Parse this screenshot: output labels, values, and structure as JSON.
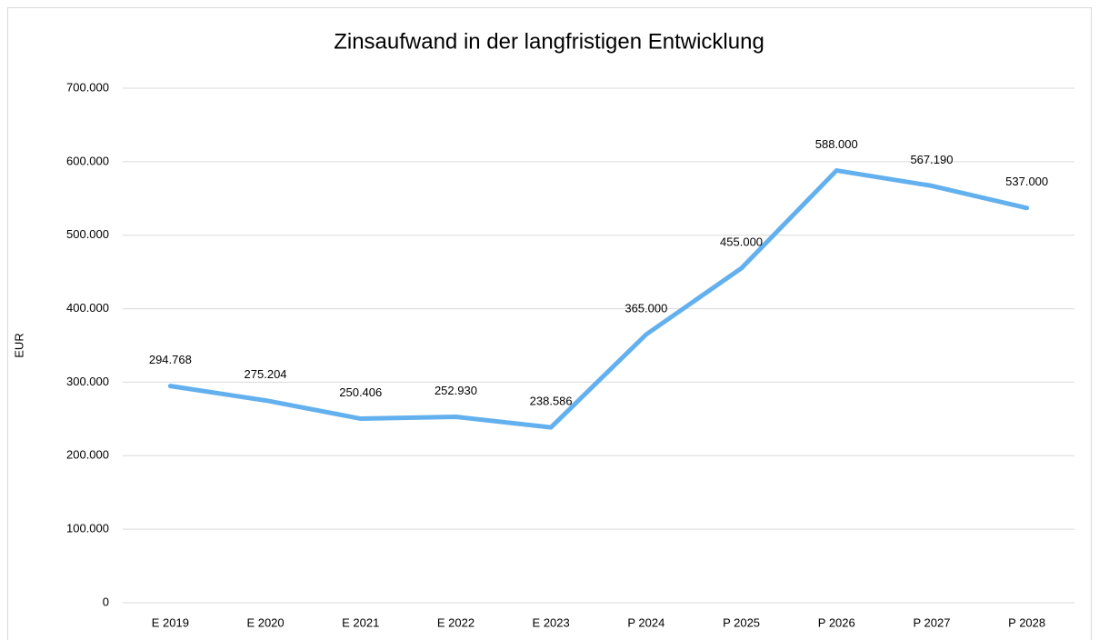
{
  "chart_data": {
    "type": "line",
    "title": "Zinsaufwand in der langfristigen Entwicklung",
    "y_label": "EUR",
    "categories": [
      "E 2019",
      "E 2020",
      "E 2021",
      "E 2022",
      "E 2023",
      "P 2024",
      "P 2025",
      "P 2026",
      "P 2027",
      "P 2028"
    ],
    "series": [
      {
        "name": "Zinsaufwand",
        "color": "#63b0ee",
        "values": [
          294768,
          275204,
          250406,
          252930,
          238586,
          365000,
          455000,
          588000,
          567190,
          537000
        ],
        "value_labels": [
          "294.768",
          "275.204",
          "250.406",
          "252.930",
          "238.586",
          "365.000",
          "455.000",
          "588.000",
          "567.190",
          "537.000"
        ]
      }
    ],
    "ylim": [
      0,
      700000
    ],
    "yticks": [
      0,
      {
        "value": 100000,
        "label": "100.000"
      },
      {
        "value": 200000,
        "label": "200.000"
      },
      {
        "value": 300000,
        "label": "300.000"
      },
      {
        "value": 400000,
        "label": "400.000"
      },
      {
        "value": 500000,
        "label": "500.000"
      },
      {
        "value": 600000,
        "label": "600.000"
      },
      {
        "value": 700000,
        "label": "700.000"
      }
    ],
    "grid": true
  }
}
